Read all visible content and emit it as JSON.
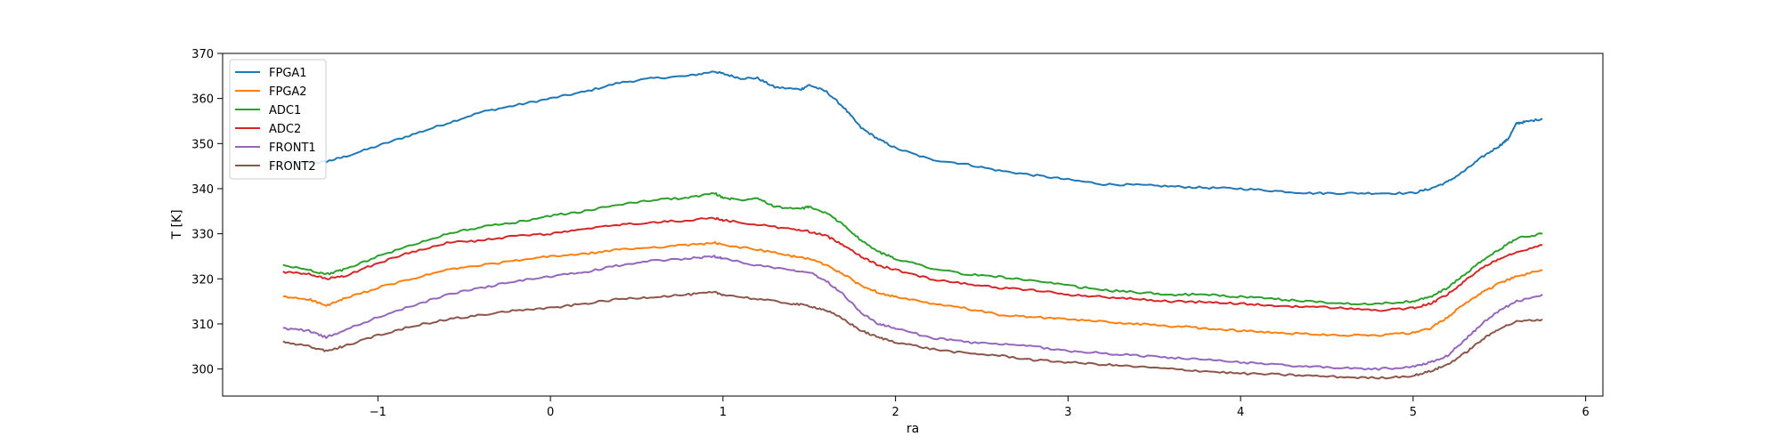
{
  "chart_data": {
    "type": "line",
    "xlabel": "ra",
    "ylabel": "T [K]",
    "xlim": [
      -1.9,
      6.1
    ],
    "ylim": [
      294,
      370
    ],
    "x_ticks": [
      -1,
      0,
      1,
      2,
      3,
      4,
      5,
      6
    ],
    "y_ticks": [
      300,
      310,
      320,
      330,
      340,
      350,
      360,
      370
    ],
    "grid": false,
    "legend_position": "top-left",
    "series": [
      {
        "name": "FPGA1",
        "color": "#1f77b4",
        "x": [
          -1.55,
          -1.4,
          -1.3,
          -1.2,
          -1.0,
          -0.8,
          -0.6,
          -0.4,
          -0.2,
          0.0,
          0.2,
          0.4,
          0.6,
          0.8,
          0.95,
          1.0,
          1.1,
          1.2,
          1.3,
          1.45,
          1.5,
          1.6,
          1.7,
          1.8,
          1.9,
          2.0,
          2.2,
          2.4,
          2.6,
          2.8,
          3.0,
          3.2,
          3.4,
          3.6,
          3.8,
          4.0,
          4.2,
          4.4,
          4.6,
          4.8,
          5.0,
          5.1,
          5.2,
          5.3,
          5.4,
          5.5,
          5.55,
          5.6,
          5.65,
          5.75
        ],
        "y": [
          346,
          345.6,
          346,
          347,
          349.5,
          352,
          354.5,
          357,
          358.5,
          360,
          361.5,
          363.5,
          364.5,
          365,
          366,
          365.5,
          364.5,
          364.5,
          362.5,
          362,
          363,
          361.5,
          358,
          353.5,
          351,
          349,
          346.5,
          345.5,
          344,
          343,
          342,
          341,
          340.8,
          340.5,
          340.2,
          340,
          339.5,
          339,
          339,
          339,
          339,
          340,
          341.5,
          344,
          347,
          349.5,
          351,
          354.5,
          354.8,
          355.5
        ]
      },
      {
        "name": "FPGA2",
        "color": "#ff7f0e",
        "x": [
          -1.55,
          -1.4,
          -1.3,
          -1.2,
          -1.0,
          -0.8,
          -0.6,
          -0.4,
          -0.2,
          0.0,
          0.2,
          0.4,
          0.6,
          0.8,
          0.95,
          1.0,
          1.2,
          1.4,
          1.5,
          1.6,
          1.7,
          1.8,
          1.9,
          2.0,
          2.2,
          2.4,
          2.6,
          2.8,
          3.0,
          3.2,
          3.4,
          3.6,
          3.8,
          4.0,
          4.2,
          4.4,
          4.6,
          4.8,
          5.0,
          5.1,
          5.2,
          5.3,
          5.4,
          5.5,
          5.6,
          5.75
        ],
        "y": [
          316,
          315.5,
          314,
          315.5,
          318,
          320,
          322,
          323,
          324,
          325,
          325.5,
          326.5,
          327,
          327.5,
          328,
          327.5,
          326.5,
          325,
          324.5,
          323,
          321,
          318.5,
          317,
          316,
          314.5,
          313.5,
          312,
          311.5,
          311,
          310.5,
          310,
          309.5,
          309,
          308.5,
          308,
          307.8,
          307.5,
          307.5,
          308,
          309,
          311.5,
          314.5,
          317,
          319,
          320.5,
          322
        ]
      },
      {
        "name": "ADC1",
        "color": "#2ca02c",
        "x": [
          -1.55,
          -1.4,
          -1.3,
          -1.2,
          -1.0,
          -0.8,
          -0.6,
          -0.4,
          -0.2,
          0.0,
          0.2,
          0.4,
          0.6,
          0.8,
          0.95,
          1.0,
          1.1,
          1.2,
          1.3,
          1.45,
          1.5,
          1.6,
          1.7,
          1.8,
          1.9,
          2.0,
          2.2,
          2.4,
          2.6,
          2.8,
          3.0,
          3.2,
          3.4,
          3.6,
          3.8,
          4.0,
          4.2,
          4.4,
          4.6,
          4.8,
          5.0,
          5.1,
          5.2,
          5.3,
          5.4,
          5.5,
          5.6,
          5.75
        ],
        "y": [
          323,
          322,
          321,
          322,
          325,
          327.5,
          330,
          331.5,
          332.5,
          334,
          335,
          336.5,
          337.5,
          338,
          339,
          338,
          337.5,
          338,
          336,
          335.5,
          336,
          334.5,
          332,
          328.5,
          326,
          324.5,
          322.5,
          321,
          320.5,
          319.5,
          318.5,
          317.5,
          317,
          316.5,
          316.5,
          316,
          315.5,
          315,
          314.5,
          314.5,
          315,
          316,
          318,
          321,
          324,
          326.5,
          329,
          330
        ]
      },
      {
        "name": "ADC2",
        "color": "#d62728",
        "x": [
          -1.55,
          -1.4,
          -1.3,
          -1.2,
          -1.0,
          -0.8,
          -0.6,
          -0.4,
          -0.2,
          0.0,
          0.2,
          0.4,
          0.6,
          0.8,
          0.95,
          1.0,
          1.2,
          1.4,
          1.5,
          1.6,
          1.7,
          1.8,
          1.9,
          2.0,
          2.2,
          2.4,
          2.6,
          2.8,
          3.0,
          3.2,
          3.4,
          3.6,
          3.8,
          4.0,
          4.2,
          4.4,
          4.6,
          4.8,
          5.0,
          5.1,
          5.2,
          5.3,
          5.4,
          5.5,
          5.6,
          5.75
        ],
        "y": [
          321.5,
          321,
          320,
          320.5,
          323.5,
          326,
          328,
          328.5,
          329.5,
          330,
          331,
          332,
          332.5,
          333,
          333.5,
          333,
          332,
          331,
          330.5,
          329.5,
          327.5,
          325,
          323,
          322,
          320,
          319,
          318,
          317.5,
          316.5,
          316,
          315.5,
          315,
          314.8,
          314.5,
          314,
          313.8,
          313.5,
          313,
          313.5,
          314.5,
          316.5,
          319.5,
          322.5,
          324.5,
          326,
          327.5
        ]
      },
      {
        "name": "FRONT1",
        "color": "#9467bd",
        "x": [
          -1.55,
          -1.4,
          -1.3,
          -1.2,
          -1.0,
          -0.8,
          -0.6,
          -0.4,
          -0.2,
          0.0,
          0.2,
          0.4,
          0.6,
          0.8,
          0.95,
          1.0,
          1.2,
          1.4,
          1.5,
          1.6,
          1.7,
          1.8,
          1.9,
          2.0,
          2.2,
          2.4,
          2.6,
          2.8,
          3.0,
          3.2,
          3.4,
          3.6,
          3.8,
          4.0,
          4.2,
          4.4,
          4.6,
          4.8,
          5.0,
          5.1,
          5.2,
          5.3,
          5.4,
          5.5,
          5.6,
          5.75
        ],
        "y": [
          309,
          308.5,
          307,
          308.5,
          311.5,
          314,
          316.5,
          318,
          319.5,
          320.5,
          321.5,
          323,
          324,
          324.5,
          325,
          324.5,
          323,
          322,
          321.5,
          319.5,
          316.5,
          312.5,
          310,
          309,
          307,
          306,
          305.5,
          305,
          304,
          303.5,
          303,
          302.5,
          302,
          301.5,
          301,
          300.5,
          300.2,
          300,
          300.5,
          301.5,
          303,
          306.5,
          310,
          313,
          315,
          316.5
        ]
      },
      {
        "name": "FRONT2",
        "color": "#8c564b",
        "x": [
          -1.55,
          -1.4,
          -1.3,
          -1.2,
          -1.0,
          -0.8,
          -0.6,
          -0.4,
          -0.2,
          0.0,
          0.2,
          0.4,
          0.6,
          0.8,
          0.95,
          1.0,
          1.2,
          1.4,
          1.5,
          1.6,
          1.7,
          1.8,
          1.9,
          2.0,
          2.2,
          2.4,
          2.6,
          2.8,
          3.0,
          3.2,
          3.4,
          3.6,
          3.8,
          4.0,
          4.2,
          4.4,
          4.6,
          4.8,
          5.0,
          5.1,
          5.2,
          5.3,
          5.4,
          5.5,
          5.6,
          5.75
        ],
        "y": [
          306,
          305,
          304,
          305,
          307.5,
          309.5,
          311,
          312,
          313,
          313.5,
          314.5,
          315.5,
          316,
          316.5,
          317,
          316.5,
          315.5,
          314.5,
          314,
          313,
          311,
          308.5,
          307,
          306,
          304.5,
          303.5,
          303,
          302,
          301.5,
          301,
          300.5,
          300,
          299.5,
          299,
          298.8,
          298.5,
          298.2,
          298,
          298.5,
          299.5,
          301,
          303.5,
          306.5,
          309,
          310.5,
          311
        ]
      }
    ]
  }
}
